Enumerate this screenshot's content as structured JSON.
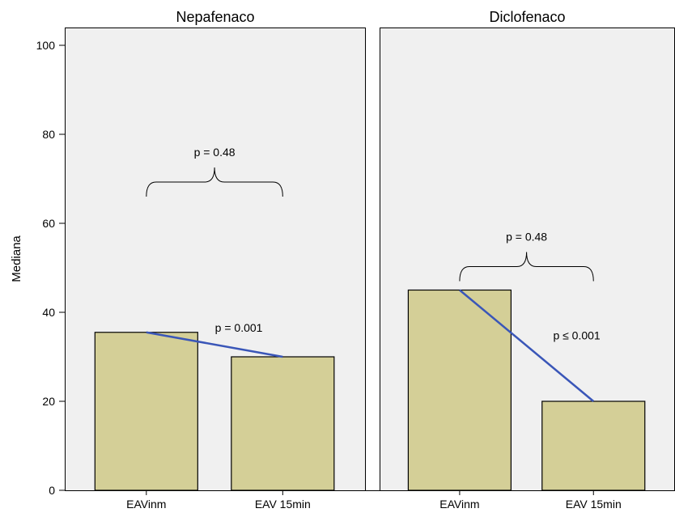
{
  "chart_data": {
    "type": "bar",
    "ylabel": "Mediana",
    "ylim": [
      0,
      104
    ],
    "yticks": [
      0,
      20,
      40,
      60,
      80,
      100
    ],
    "grid": false,
    "colors": {
      "panel_bg": "#f0f0f0",
      "bar_fill": "#d4cf97",
      "bar_stroke": "#000000",
      "trend_line": "#3a56b8",
      "brace": "#000000"
    },
    "panels": [
      {
        "title": "Nepafenaco",
        "categories": [
          "EAVinm",
          "EAV 15min"
        ],
        "values": [
          35.5,
          30
        ],
        "annotation": "p = 0.001"
      },
      {
        "title": "Diclofenaco",
        "categories": [
          "EAVinm",
          "EAV 15min"
        ],
        "values": [
          45,
          20
        ],
        "annotation": "p ≤ 0.001"
      }
    ],
    "comparisons": [
      {
        "label": "p = 0.48",
        "from": [
          0,
          0
        ],
        "to": [
          1,
          0
        ],
        "level": 66
      },
      {
        "label": "p = 0.48",
        "from": [
          0,
          1
        ],
        "to": [
          1,
          1
        ],
        "level": 47
      }
    ]
  }
}
